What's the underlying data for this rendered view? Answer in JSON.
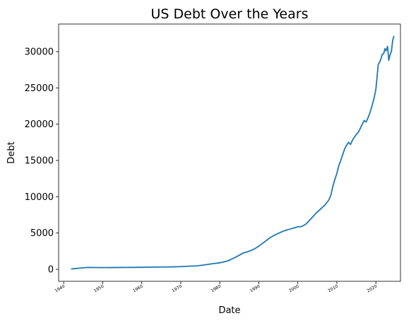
{
  "chart_data": {
    "type": "line",
    "title": "US Debt Over the Years",
    "xlabel": "Date",
    "ylabel": "Debt",
    "xlim": [
      1938.7,
      2026.3
    ],
    "ylim": [
      -1650,
      33800
    ],
    "x_ticks": [
      1940,
      1950,
      1960,
      1970,
      1980,
      1990,
      2000,
      2010,
      2020
    ],
    "x_tick_labels": [
      "1940",
      "1950",
      "1960",
      "1970",
      "1980",
      "1990",
      "2000",
      "2010",
      "2020"
    ],
    "y_ticks": [
      0,
      5000,
      10000,
      15000,
      20000,
      25000,
      30000
    ],
    "y_tick_labels": [
      "0",
      "5000",
      "10000",
      "15000",
      "20000",
      "25000",
      "30000"
    ],
    "grid": false,
    "legend": null,
    "line_color": "#1f77b4",
    "series": [
      {
        "name": "",
        "x": [
          1942.0,
          1944.0,
          1946.0,
          1948.0,
          1950.0,
          1952.0,
          1954.0,
          1956.0,
          1958.0,
          1960.0,
          1962.0,
          1964.0,
          1966.0,
          1968.0,
          1970.0,
          1972.0,
          1974.0,
          1976.0,
          1978.0,
          1980.0,
          1982.0,
          1983.0,
          1984.0,
          1985.0,
          1986.0,
          1987.0,
          1988.0,
          1989.0,
          1990.0,
          1991.0,
          1992.0,
          1993.0,
          1994.0,
          1995.0,
          1996.0,
          1997.0,
          1998.0,
          1999.0,
          2000.0,
          2001.0,
          2002.0,
          2003.0,
          2004.0,
          2005.0,
          2006.0,
          2007.0,
          2008.0,
          2008.5,
          2009.0,
          2009.5,
          2010.0,
          2010.5,
          2011.0,
          2011.5,
          2012.0,
          2012.5,
          2013.0,
          2013.5,
          2014.0,
          2014.5,
          2015.0,
          2015.5,
          2016.0,
          2016.5,
          2017.0,
          2017.5,
          2018.0,
          2018.5,
          2019.0,
          2019.5,
          2020.0,
          2020.3,
          2020.6,
          2021.0,
          2021.3,
          2021.6,
          2022.0,
          2022.3,
          2022.6,
          2023.0,
          2023.3,
          2023.6,
          2024.0,
          2024.3,
          2024.6
        ],
        "values": [
          60,
          150,
          260,
          250,
          240,
          245,
          255,
          265,
          270,
          280,
          300,
          310,
          320,
          340,
          370,
          430,
          470,
          600,
          760,
          900,
          1150,
          1400,
          1650,
          1950,
          2250,
          2400,
          2600,
          2850,
          3200,
          3600,
          4000,
          4400,
          4700,
          4950,
          5200,
          5400,
          5550,
          5700,
          5850,
          5900,
          6200,
          6750,
          7350,
          7900,
          8400,
          8900,
          9600,
          10300,
          11500,
          12400,
          13200,
          14300,
          15000,
          15800,
          16600,
          17100,
          17500,
          17200,
          17800,
          18200,
          18600,
          18900,
          19400,
          20000,
          20500,
          20300,
          20900,
          21600,
          22500,
          23500,
          24800,
          26500,
          28200,
          28600,
          29000,
          29600,
          29700,
          30400,
          30100,
          30700,
          28800,
          29500,
          30100,
          31500,
          32100
        ]
      }
    ]
  }
}
